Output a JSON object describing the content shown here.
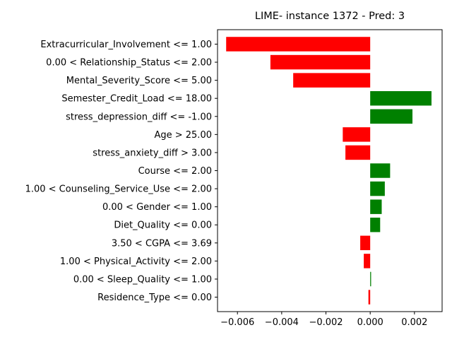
{
  "chart_data": {
    "type": "bar",
    "orientation": "horizontal",
    "title": "LIME- instance 1372 - Pred: 3",
    "xlabel": "",
    "ylabel": "",
    "xlim": [
      -0.0069,
      0.00325
    ],
    "xticks": [
      -0.006,
      -0.004,
      -0.002,
      0.0,
      0.002
    ],
    "xtick_labels": [
      "−0.006",
      "−0.004",
      "−0.002",
      "0.000",
      "0.002"
    ],
    "grid": false,
    "colors": {
      "positive": "#008000",
      "negative": "#ff0000"
    },
    "categories": [
      "Extracurricular_Involvement <= 1.00",
      "0.00 < Relationship_Status <= 2.00",
      "Mental_Severity_Score <= 5.00",
      "Semester_Credit_Load <= 18.00",
      "stress_depression_diff <= -1.00",
      "Age > 25.00",
      "stress_anxiety_diff > 3.00",
      "Course <= 2.00",
      "1.00 < Counseling_Service_Use <= 2.00",
      "0.00 < Gender <= 1.00",
      "Diet_Quality <= 0.00",
      "3.50 < CGPA <= 3.69",
      "1.00 < Physical_Activity <= 2.00",
      "0.00 < Sleep_Quality <= 1.00",
      "Residence_Type <= 0.00"
    ],
    "values": [
      -0.00651,
      -0.00451,
      -0.00348,
      0.00277,
      0.00191,
      -0.00124,
      -0.00112,
      0.0009,
      0.00066,
      0.00052,
      0.00045,
      -0.00045,
      -0.00029,
      4e-05,
      -8e-05
    ]
  }
}
